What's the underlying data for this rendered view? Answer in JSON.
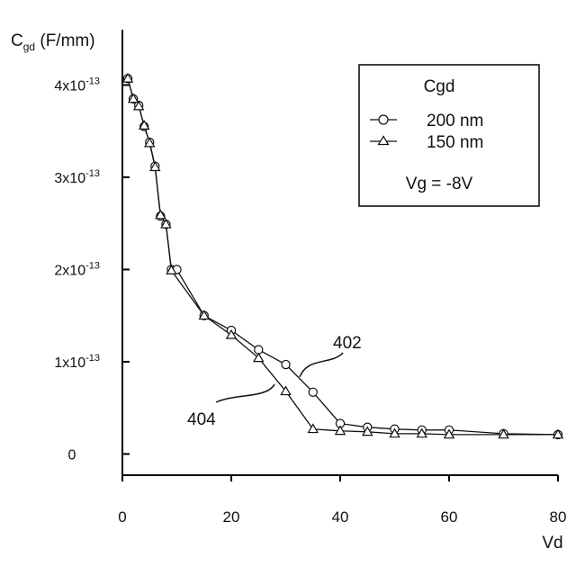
{
  "chart_data": {
    "type": "line",
    "title": "",
    "xlabel": "Vd",
    "ylabel": {
      "base": "C",
      "sub": "gd",
      "rest": " (F/mm)"
    },
    "xlim": [
      0,
      80
    ],
    "ylim": [
      -2.3e-14,
      4.6e-13
    ],
    "x_ticks": [
      0,
      20,
      40,
      60,
      80
    ],
    "x_tick_labels": [
      "0",
      "20",
      "40",
      "60",
      "80"
    ],
    "y_ticks": [
      {
        "value": 0,
        "label": "0"
      },
      {
        "value": 1e-13,
        "mantissa": "1x10",
        "exp": "-13"
      },
      {
        "value": 2e-13,
        "mantissa": "2x10",
        "exp": "-13"
      },
      {
        "value": 3e-13,
        "mantissa": "3x10",
        "exp": "-13"
      },
      {
        "value": 4e-13,
        "mantissa": "4x10",
        "exp": "-13"
      }
    ],
    "grid": false,
    "legend": {
      "title": "Cgd",
      "note": "Vg = -8V",
      "placement": "top-right"
    },
    "series": [
      {
        "name": "200 nm",
        "marker": "circle",
        "x": [
          1,
          2,
          3,
          4,
          5,
          6,
          7,
          8,
          9,
          10,
          15,
          20,
          25,
          30,
          35,
          40,
          45,
          50,
          55,
          60,
          70,
          80
        ],
        "y": [
          4.07e-13,
          3.85e-13,
          3.78e-13,
          3.55e-13,
          3.38e-13,
          3.12e-13,
          2.58e-13,
          2.49e-13,
          2e-13,
          2e-13,
          1.5e-13,
          1.34e-13,
          1.13e-13,
          9.7e-14,
          6.7e-14,
          3.3e-14,
          2.9e-14,
          2.7e-14,
          2.6e-14,
          2.6e-14,
          2.2e-14,
          2.1e-14
        ]
      },
      {
        "name": "150 nm",
        "marker": "triangle",
        "x": [
          1,
          2,
          3,
          4,
          5,
          6,
          7,
          8,
          9,
          15,
          20,
          25,
          30,
          35,
          40,
          45,
          50,
          55,
          60,
          70,
          80
        ],
        "y": [
          4.07e-13,
          3.85e-13,
          3.77e-13,
          3.56e-13,
          3.37e-13,
          3.11e-13,
          2.59e-13,
          2.49e-13,
          1.99e-13,
          1.5e-13,
          1.29e-13,
          1.04e-13,
          6.8e-14,
          2.7e-14,
          2.5e-14,
          2.4e-14,
          2.2e-14,
          2.2e-14,
          2.1e-14,
          2.1e-14,
          2.1e-14
        ]
      }
    ],
    "annotations": [
      {
        "text": "402",
        "series": "200 nm"
      },
      {
        "text": "404",
        "series": "150 nm"
      }
    ]
  }
}
